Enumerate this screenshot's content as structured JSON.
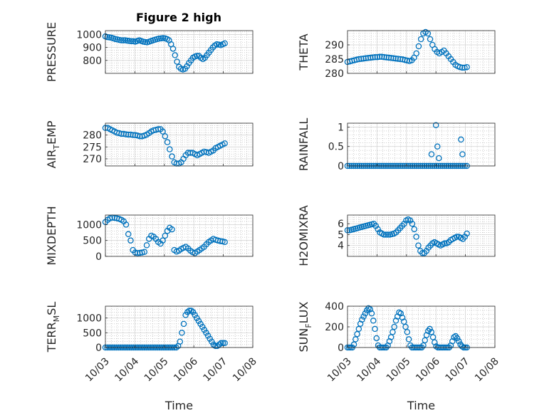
{
  "figure": {
    "title": "Figure 2 high",
    "marker_color": "#0072BD",
    "grid": true,
    "minor_grid": true
  },
  "chart_data": [
    {
      "type": "scatter",
      "ylabel": "PRESSURE",
      "xlim": [
        0,
        5
      ],
      "ylim": [
        700,
        1030
      ],
      "yticks": [
        1000,
        900,
        800
      ],
      "y": [
        985,
        980,
        978,
        975,
        970,
        965,
        962,
        958,
        955,
        955,
        955,
        952,
        950,
        948,
        948,
        945,
        950,
        955,
        950,
        945,
        942,
        940,
        945,
        950,
        955,
        960,
        965,
        968,
        970,
        972,
        970,
        965,
        955,
        925,
        890,
        840,
        790,
        750,
        735,
        730,
        735,
        755,
        780,
        800,
        820,
        830,
        835,
        835,
        820,
        810,
        820,
        840,
        860,
        880,
        900,
        915,
        925,
        922,
        918,
        925,
        932
      ]
    },
    {
      "type": "scatter",
      "ylabel": "THETA",
      "xlim": [
        0,
        5
      ],
      "ylim": [
        280,
        295
      ],
      "yticks": [
        290,
        285,
        280
      ],
      "y": [
        284,
        284.2,
        284.4,
        284.6,
        284.8,
        285,
        285.1,
        285.2,
        285.3,
        285.4,
        285.5,
        285.6,
        285.7,
        285.7,
        285.8,
        285.8,
        285.7,
        285.6,
        285.5,
        285.4,
        285.3,
        285.2,
        285.1,
        285,
        284.9,
        284.7,
        284.5,
        284.3,
        284.6,
        285.5,
        287,
        289.5,
        292,
        294,
        294.5,
        294,
        292,
        290,
        288.5,
        287.5,
        287,
        287.5,
        288,
        287,
        286,
        285,
        284,
        283,
        282.5,
        282.2,
        282,
        282,
        282.2
      ]
    },
    {
      "type": "scatter",
      "ylabel": "AIR_TEMP",
      "xlim": [
        0,
        5
      ],
      "ylim": [
        267,
        285
      ],
      "yticks": [
        280,
        275,
        270
      ],
      "y": [
        283,
        283,
        282.5,
        282,
        281.5,
        281,
        280.8,
        280.5,
        280.5,
        280.3,
        280.2,
        280.2,
        280,
        280,
        279.8,
        279.5,
        279.5,
        279.8,
        280.2,
        280.8,
        281.5,
        282,
        282.2,
        282.5,
        282.5,
        281.5,
        279.5,
        277,
        274,
        271,
        268.5,
        268,
        268,
        268.5,
        270,
        271.5,
        272.5,
        272.5,
        272.5,
        272,
        271.5,
        272,
        272.5,
        273,
        272.8,
        272.5,
        273,
        273.5,
        274.5,
        275,
        275.5,
        276,
        276.5
      ]
    },
    {
      "type": "scatter",
      "ylabel": "MIXDEPTH",
      "xlim": [
        0,
        5
      ],
      "ylim": [
        0,
        1300
      ],
      "yticks": [
        1000,
        500,
        0
      ],
      "y": [
        1080,
        1150,
        1200,
        1220,
        1210,
        1200,
        1180,
        1150,
        1100,
        1000,
        700,
        500,
        200,
        120,
        100,
        110,
        120,
        140,
        350,
        550,
        650,
        620,
        550,
        450,
        400,
        500,
        650,
        800,
        900,
        850,
        200,
        150,
        180,
        230,
        270,
        300,
        250,
        180,
        130,
        100,
        150,
        200,
        250,
        300,
        380,
        450,
        500,
        550,
        520,
        500,
        480,
        470,
        450
      ]
    },
    {
      "type": "scatter",
      "ylabel": "H2OMIXRA",
      "xlim": [
        0,
        5
      ],
      "ylim": [
        3,
        6.8
      ],
      "yticks": [
        6,
        5,
        4
      ],
      "y": [
        5.4,
        5.4,
        5.45,
        5.5,
        5.55,
        5.6,
        5.65,
        5.7,
        5.75,
        5.8,
        5.85,
        5.9,
        5.95,
        6,
        5.8,
        5.5,
        5.2,
        5.1,
        5,
        5,
        5,
        5,
        5.05,
        5.1,
        5.2,
        5.4,
        5.6,
        5.8,
        6,
        6.3,
        6.4,
        6.3,
        6,
        5.5,
        4.8,
        4,
        3.5,
        3.3,
        3.3,
        3.5,
        3.8,
        4,
        4.2,
        4.3,
        4.2,
        4.1,
        4,
        4.1,
        4.2,
        4.2,
        4.3,
        4.5,
        4.6,
        4.7,
        4.8,
        4.8,
        4.7,
        4.6,
        4.8,
        5.1
      ]
    },
    {
      "type": "scatter",
      "ylabel": "RAINFALL",
      "xlim": [
        0,
        5
      ],
      "ylim": [
        0,
        1.1
      ],
      "yticks": [
        1,
        0.5,
        0
      ],
      "y": [
        0,
        0,
        0,
        0,
        0,
        0,
        0,
        0,
        0,
        0,
        0,
        0,
        0,
        0,
        0,
        0,
        0,
        0,
        0,
        0,
        0,
        0,
        0,
        0,
        0,
        0,
        0,
        0,
        0,
        0,
        0,
        0,
        0,
        0,
        0,
        0,
        0,
        0,
        0,
        0,
        0,
        0,
        0,
        0,
        0,
        0,
        0,
        0,
        0,
        0,
        0,
        0,
        0,
        0,
        0,
        0,
        0,
        0,
        0,
        0
      ],
      "spikes": [
        [
          2.85,
          0.3
        ],
        [
          3.0,
          1.05
        ],
        [
          3.05,
          0.5
        ],
        [
          3.1,
          0.2
        ],
        [
          3.85,
          0.68
        ],
        [
          3.9,
          0.3
        ]
      ]
    },
    {
      "type": "scatter",
      "ylabel": "TERR_MSL",
      "xlim": [
        0,
        5
      ],
      "ylim": [
        0,
        1400
      ],
      "yticks": [
        1000,
        500,
        0
      ],
      "y": [
        0,
        0,
        0,
        0,
        0,
        0,
        0,
        0,
        0,
        0,
        0,
        0,
        0,
        0,
        0,
        0,
        0,
        0,
        0,
        0,
        0,
        0,
        0,
        0,
        0,
        0,
        0,
        0,
        0,
        0,
        0,
        0,
        0,
        0,
        0,
        0,
        0,
        0,
        0,
        50,
        200,
        500,
        800,
        1100,
        1200,
        1250,
        1250,
        1200,
        1100,
        1000,
        900,
        800,
        700,
        600,
        500,
        400,
        300,
        200,
        100,
        50,
        50,
        100,
        150,
        150,
        150
      ]
    },
    {
      "type": "scatter",
      "ylabel": "SUN_FLUX",
      "xlim": [
        0,
        5
      ],
      "ylim": [
        0,
        400
      ],
      "yticks": [
        400,
        200,
        0
      ],
      "y": [
        0,
        0,
        0,
        0,
        30,
        80,
        130,
        180,
        230,
        270,
        300,
        330,
        360,
        380,
        370,
        330,
        260,
        180,
        90,
        20,
        0,
        0,
        0,
        0,
        0,
        20,
        60,
        100,
        150,
        200,
        260,
        300,
        340,
        330,
        290,
        250,
        200,
        150,
        80,
        20,
        0,
        0,
        0,
        0,
        0,
        0,
        0,
        20,
        70,
        120,
        160,
        180,
        150,
        100,
        50,
        10,
        0,
        0,
        0,
        0,
        0,
        0,
        0,
        0,
        20,
        60,
        100,
        110,
        90,
        60,
        30,
        10,
        0,
        0,
        0
      ]
    }
  ],
  "x_axis": {
    "tick_labels": [
      "10/03",
      "10/04",
      "10/05",
      "10/06",
      "10/07",
      "10/08"
    ],
    "label": "Time"
  }
}
